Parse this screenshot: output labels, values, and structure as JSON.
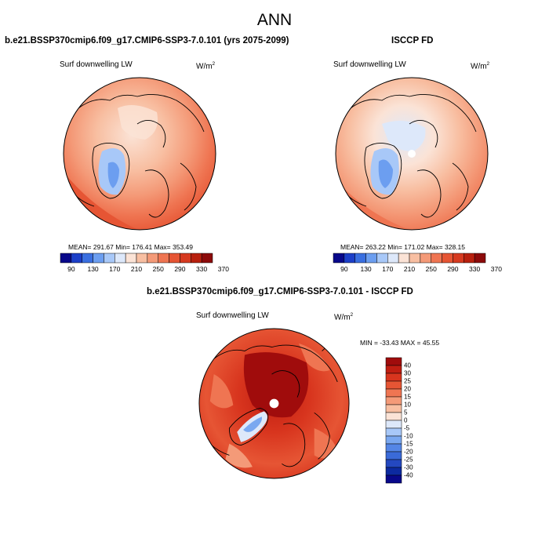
{
  "title": "ANN",
  "panels": {
    "model": {
      "title": "b.e21.BSSP370cmip6.f09_g17.CMIP6-SSP3-7.0.101 (yrs 2075-2099)",
      "variable": "Surf downwelling LW",
      "units": "W/m",
      "units_exp": "2",
      "stats": "MEAN= 291.67  Min= 176.41  Max= 353.49"
    },
    "obs": {
      "title": "ISCCP FD",
      "variable": "Surf downwelling LW",
      "units": "W/m",
      "units_exp": "2",
      "stats": "MEAN= 263.22  Min= 171.02  Max= 328.15"
    },
    "diff": {
      "title": "b.e21.BSSP370cmip6.f09_g17.CMIP6-SSP3-7.0.101 - ISCCP FD",
      "variable": "Surf downwelling LW",
      "units": "W/m",
      "units_exp": "2",
      "stats": "MIN = -33.43 MAX =  45.55"
    }
  },
  "colorbar_abs": {
    "colors": [
      "#08088a",
      "#1c3fc8",
      "#3a6fe0",
      "#6c9ef0",
      "#a8c8f8",
      "#dde8fa",
      "#fbe3d6",
      "#f8bfa2",
      "#f49a78",
      "#ef7552",
      "#e65534",
      "#d63a20",
      "#b8200e",
      "#8c0a0a"
    ],
    "tick_labels": [
      "90",
      "130",
      "170",
      "210",
      "250",
      "290",
      "330",
      "370"
    ]
  },
  "colorbar_diff": {
    "colors": [
      "#a00c0c",
      "#c01e12",
      "#d8351e",
      "#e65534",
      "#ef7552",
      "#f49a78",
      "#f8bfa2",
      "#fbe3d6",
      "#dde8fa",
      "#a8c8f8",
      "#7aa8f0",
      "#5486e6",
      "#3a6ad8",
      "#2448c0",
      "#0c2aa0",
      "#08088a"
    ],
    "tick_labels": [
      "40",
      "30",
      "25",
      "20",
      "15",
      "10",
      "5",
      "0",
      "-5",
      "-10",
      "-15",
      "-20",
      "-25",
      "-30",
      "-40"
    ]
  }
}
